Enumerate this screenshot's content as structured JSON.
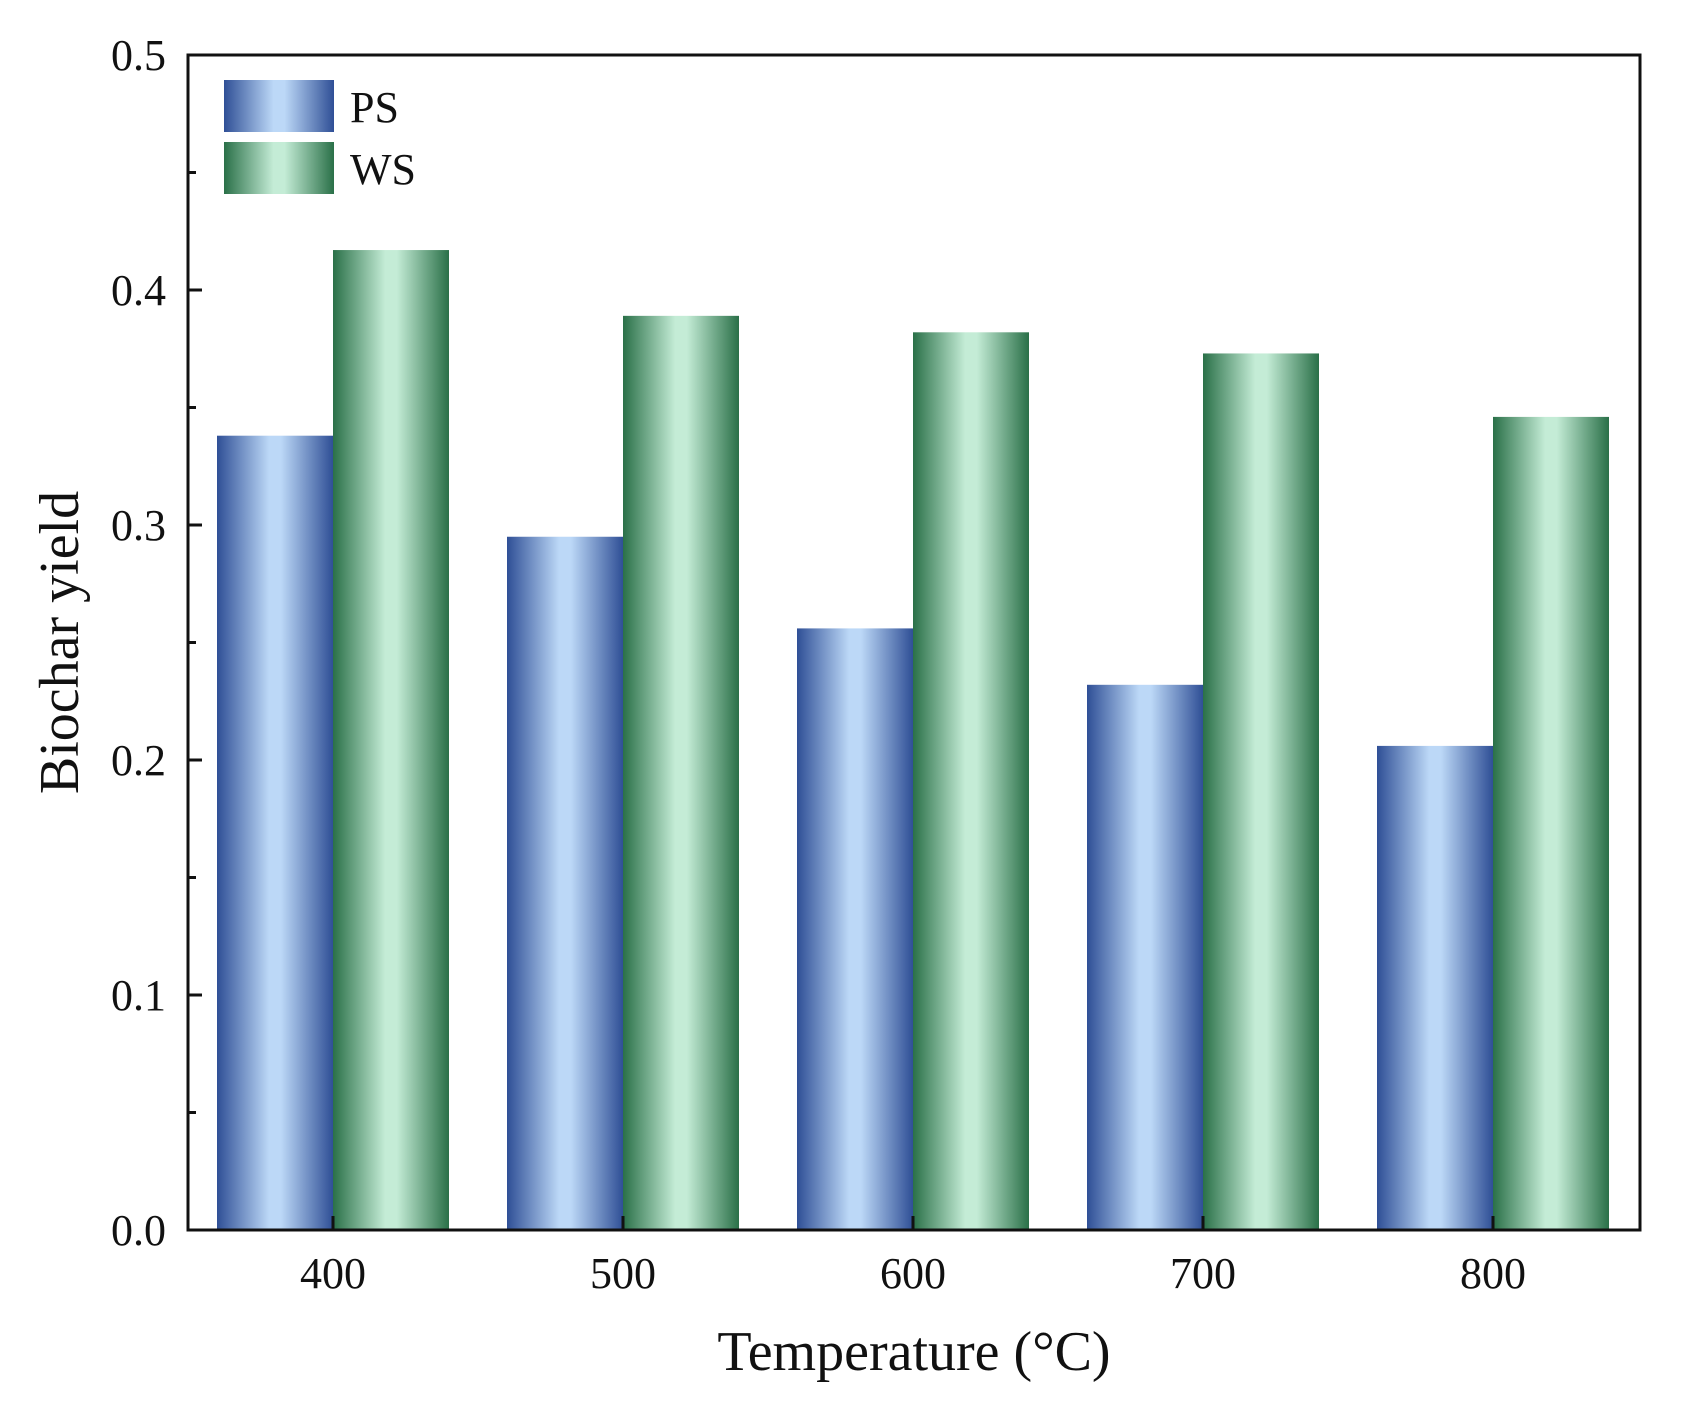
{
  "chart_data": {
    "type": "bar",
    "title": "",
    "xlabel": "Temperature (°C)",
    "ylabel": "Biochar yield",
    "categories": [
      "400",
      "500",
      "600",
      "700",
      "800"
    ],
    "series": [
      {
        "name": "PS",
        "values": [
          0.338,
          0.295,
          0.256,
          0.232,
          0.206
        ],
        "colors": {
          "dark": "#2f4f96",
          "light": "#bcd8f7"
        }
      },
      {
        "name": "WS",
        "values": [
          0.417,
          0.389,
          0.382,
          0.373,
          0.346
        ],
        "colors": {
          "dark": "#2a7048",
          "light": "#c4ecd6"
        }
      }
    ],
    "ylim": [
      0,
      0.5
    ],
    "yticks": [
      "0.0",
      "0.1",
      "0.2",
      "0.3",
      "0.4",
      "0.5"
    ],
    "yminor_step": 0.05,
    "grid": false,
    "legend_position": "top-left"
  }
}
